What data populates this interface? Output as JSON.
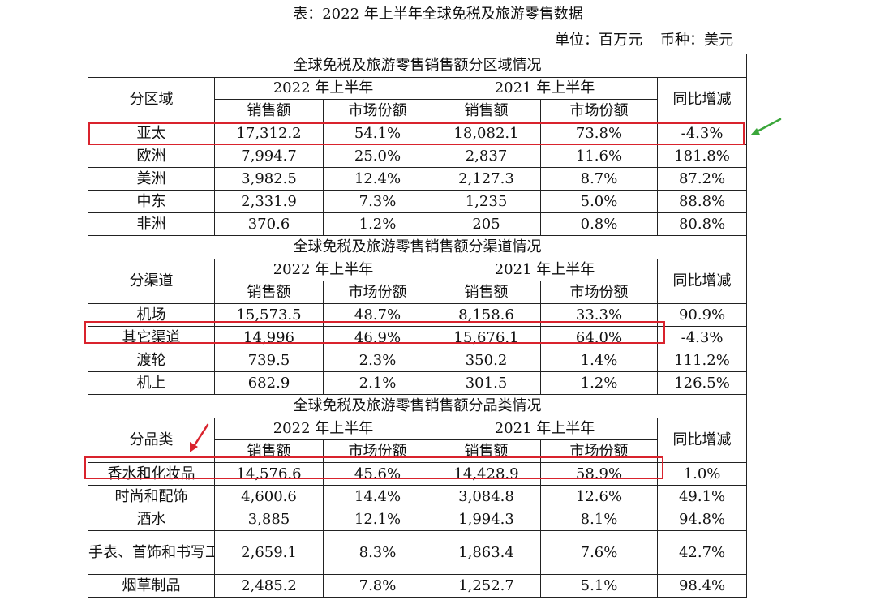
{
  "title": "表：2022 年上半年全球免税及旅游零售数据",
  "unit": {
    "label": "单位：百万元",
    "currency": "币种：美元"
  },
  "header": {
    "col_2022": "2022 年上半年",
    "col_2021": "2021 年上半年",
    "sales": "销售额",
    "share": "市场份额",
    "yoy": "同比增减"
  },
  "regions": {
    "title": "全球免税及旅游零售销售额分区域情况",
    "label": "分区域",
    "rows": [
      {
        "name": "亚太",
        "s22": "17,312.2",
        "m22": "54.1%",
        "s21": "18,082.1",
        "m21": "73.8%",
        "yoy": "-4.3%"
      },
      {
        "name": "欧洲",
        "s22": "7,994.7",
        "m22": "25.0%",
        "s21": "2,837",
        "m21": "11.6%",
        "yoy": "181.8%"
      },
      {
        "name": "美洲",
        "s22": "3,982.5",
        "m22": "12.4%",
        "s21": "2,127.3",
        "m21": "8.7%",
        "yoy": "87.2%"
      },
      {
        "name": "中东",
        "s22": "2,331.9",
        "m22": "7.3%",
        "s21": "1,235",
        "m21": "5.0%",
        "yoy": "88.8%"
      },
      {
        "name": "非洲",
        "s22": "370.6",
        "m22": "1.2%",
        "s21": "205",
        "m21": "0.8%",
        "yoy": "80.8%"
      }
    ]
  },
  "channels": {
    "title": "全球免税及旅游零售销售额分渠道情况",
    "label": "分渠道",
    "rows": [
      {
        "name": "机场",
        "s22": "15,573.5",
        "m22": "48.7%",
        "s21": "8,158.6",
        "m21": "33.3%",
        "yoy": "90.9%"
      },
      {
        "name": "其它渠道",
        "s22": "14,996",
        "m22": "46.9%",
        "s21": "15,676.1",
        "m21": "64.0%",
        "yoy": "-4.3%"
      },
      {
        "name": "渡轮",
        "s22": "739.5",
        "m22": "2.3%",
        "s21": "350.2",
        "m21": "1.4%",
        "yoy": "111.2%"
      },
      {
        "name": "机上",
        "s22": "682.9",
        "m22": "2.1%",
        "s21": "301.5",
        "m21": "1.2%",
        "yoy": "126.5%"
      }
    ]
  },
  "categories": {
    "title": "全球免税及旅游零售销售额分品类情况",
    "label": "分品类",
    "rows": [
      {
        "name": "香水和化妆品",
        "s22": "14,576.6",
        "m22": "45.6%",
        "s21": "14,428.9",
        "m21": "58.9%",
        "yoy": "1.0%"
      },
      {
        "name": "时尚和配饰",
        "s22": "4,600.6",
        "m22": "14.4%",
        "s21": "3,084.8",
        "m21": "12.6%",
        "yoy": "49.1%"
      },
      {
        "name": "酒水",
        "s22": "3,885",
        "m22": "12.1%",
        "s21": "1,994.3",
        "m21": "8.1%",
        "yoy": "94.8%"
      },
      {
        "name": "手表、首饰和书写工具",
        "s22": "2,659.1",
        "m22": "8.3%",
        "s21": "1,863.4",
        "m21": "7.6%",
        "yoy": "42.7%"
      },
      {
        "name": "烟草制品",
        "s22": "2,485.2",
        "m22": "7.8%",
        "s21": "1,252.7",
        "m21": "5.1%",
        "yoy": "98.4%"
      }
    ]
  },
  "annotations": {
    "highlight_color": "#d9232d",
    "arrow_green": "#3aa63a",
    "arrow_red": "#d9232d"
  }
}
